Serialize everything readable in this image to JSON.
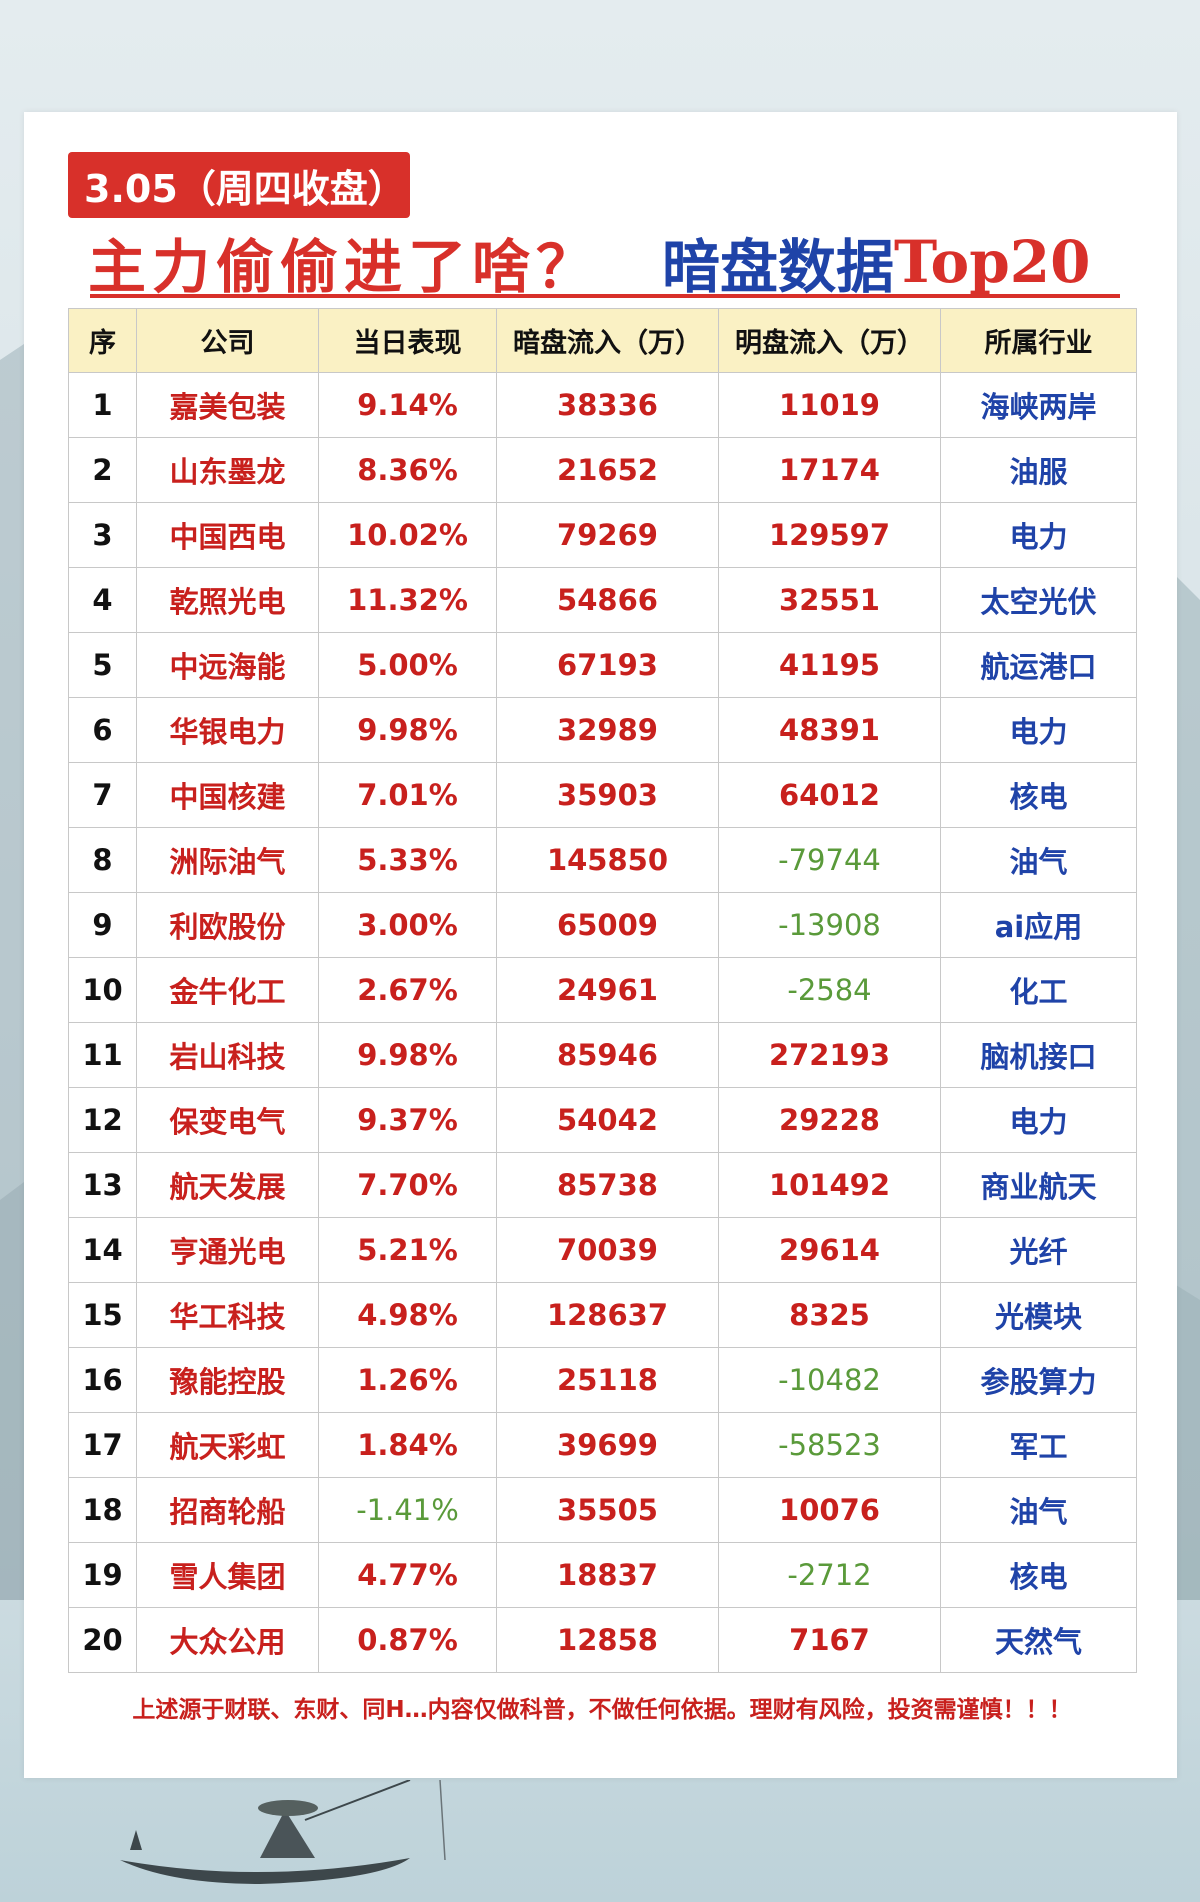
{
  "colors": {
    "accent_red": "#d8302a",
    "accent_blue": "#1f43a8",
    "positive": "#c8201d",
    "negative": "#5a9a3a",
    "header_bg": "#faf1c4"
  },
  "badge": "3.05（周四收盘）",
  "headline": {
    "part1": "主力偷偷进了啥？",
    "part2": "暗盘数据",
    "part3": "Top20"
  },
  "table": {
    "headers": [
      "序",
      "公司",
      "当日表现",
      "暗盘流入（万）",
      "明盘流入（万）",
      "所属行业"
    ],
    "rows": [
      {
        "idx": "1",
        "name": "嘉美包装",
        "perf": "9.14%",
        "dark": "38336",
        "lit": "11019",
        "industry": "海峡两岸"
      },
      {
        "idx": "2",
        "name": "山东墨龙",
        "perf": "8.36%",
        "dark": "21652",
        "lit": "17174",
        "industry": "油服"
      },
      {
        "idx": "3",
        "name": "中国西电",
        "perf": "10.02%",
        "dark": "79269",
        "lit": "129597",
        "industry": "电力"
      },
      {
        "idx": "4",
        "name": "乾照光电",
        "perf": "11.32%",
        "dark": "54866",
        "lit": "32551",
        "industry": "太空光伏"
      },
      {
        "idx": "5",
        "name": "中远海能",
        "perf": "5.00%",
        "dark": "67193",
        "lit": "41195",
        "industry": "航运港口"
      },
      {
        "idx": "6",
        "name": "华银电力",
        "perf": "9.98%",
        "dark": "32989",
        "lit": "48391",
        "industry": "电力"
      },
      {
        "idx": "7",
        "name": "中国核建",
        "perf": "7.01%",
        "dark": "35903",
        "lit": "64012",
        "industry": "核电"
      },
      {
        "idx": "8",
        "name": "洲际油气",
        "perf": "5.33%",
        "dark": "145850",
        "lit": "-79744",
        "industry": "油气"
      },
      {
        "idx": "9",
        "name": "利欧股份",
        "perf": "3.00%",
        "dark": "65009",
        "lit": "-13908",
        "industry": "ai应用"
      },
      {
        "idx": "10",
        "name": "金牛化工",
        "perf": "2.67%",
        "dark": "24961",
        "lit": "-2584",
        "industry": "化工"
      },
      {
        "idx": "11",
        "name": "岩山科技",
        "perf": "9.98%",
        "dark": "85946",
        "lit": "272193",
        "industry": "脑机接口"
      },
      {
        "idx": "12",
        "name": "保变电气",
        "perf": "9.37%",
        "dark": "54042",
        "lit": "29228",
        "industry": "电力"
      },
      {
        "idx": "13",
        "name": "航天发展",
        "perf": "7.70%",
        "dark": "85738",
        "lit": "101492",
        "industry": "商业航天"
      },
      {
        "idx": "14",
        "name": "亨通光电",
        "perf": "5.21%",
        "dark": "70039",
        "lit": "29614",
        "industry": "光纤"
      },
      {
        "idx": "15",
        "name": "华工科技",
        "perf": "4.98%",
        "dark": "128637",
        "lit": "8325",
        "industry": "光模块"
      },
      {
        "idx": "16",
        "name": "豫能控股",
        "perf": "1.26%",
        "dark": "25118",
        "lit": "-10482",
        "industry": "参股算力"
      },
      {
        "idx": "17",
        "name": "航天彩虹",
        "perf": "1.84%",
        "dark": "39699",
        "lit": "-58523",
        "industry": "军工"
      },
      {
        "idx": "18",
        "name": "招商轮船",
        "perf": "-1.41%",
        "dark": "35505",
        "lit": "10076",
        "industry": "油气"
      },
      {
        "idx": "19",
        "name": "雪人集团",
        "perf": "4.77%",
        "dark": "18837",
        "lit": "-2712",
        "industry": "核电"
      },
      {
        "idx": "20",
        "name": "大众公用",
        "perf": "0.87%",
        "dark": "12858",
        "lit": "7167",
        "industry": "天然气"
      }
    ]
  },
  "disclaimer": "上述源于财联、东财、同H…内容仅做科普，不做任何依据。理财有风险，投资需谨慎！！！",
  "decorations": [
    "mountain-ink-painting",
    "fisherman-boat-illustration"
  ]
}
